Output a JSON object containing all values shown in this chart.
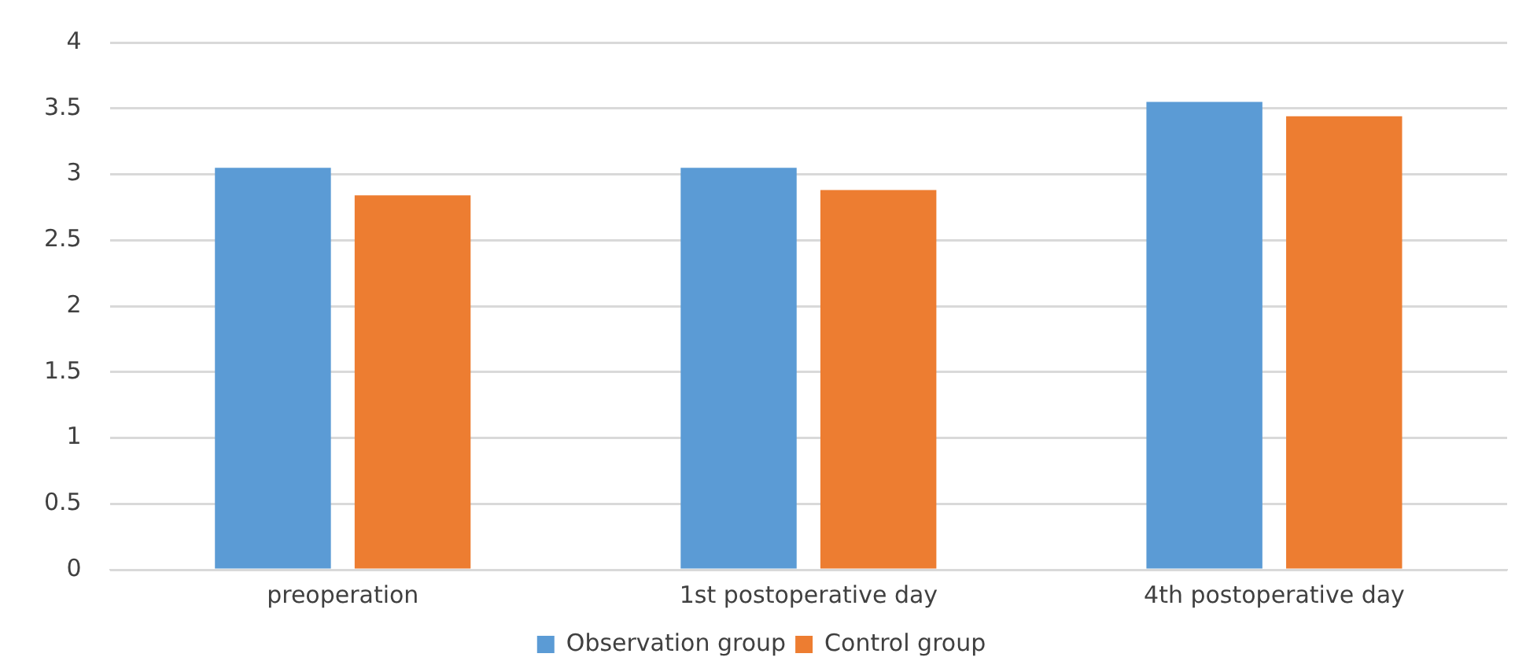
{
  "chart_data": {
    "type": "bar",
    "categories": [
      "preoperation",
      "1st postoperative day",
      "4th postoperative day"
    ],
    "series": [
      {
        "name": "Observation group",
        "color": "#5b9bd5",
        "values": [
          3.05,
          3.05,
          3.55
        ]
      },
      {
        "name": "Control group",
        "color": "#ed7d31",
        "values": [
          2.84,
          2.88,
          3.44
        ]
      }
    ],
    "ylim": [
      0,
      4
    ],
    "yticks": [
      0,
      0.5,
      1,
      1.5,
      2,
      2.5,
      3,
      3.5,
      4
    ],
    "grid": "y",
    "legend": "bottom"
  }
}
